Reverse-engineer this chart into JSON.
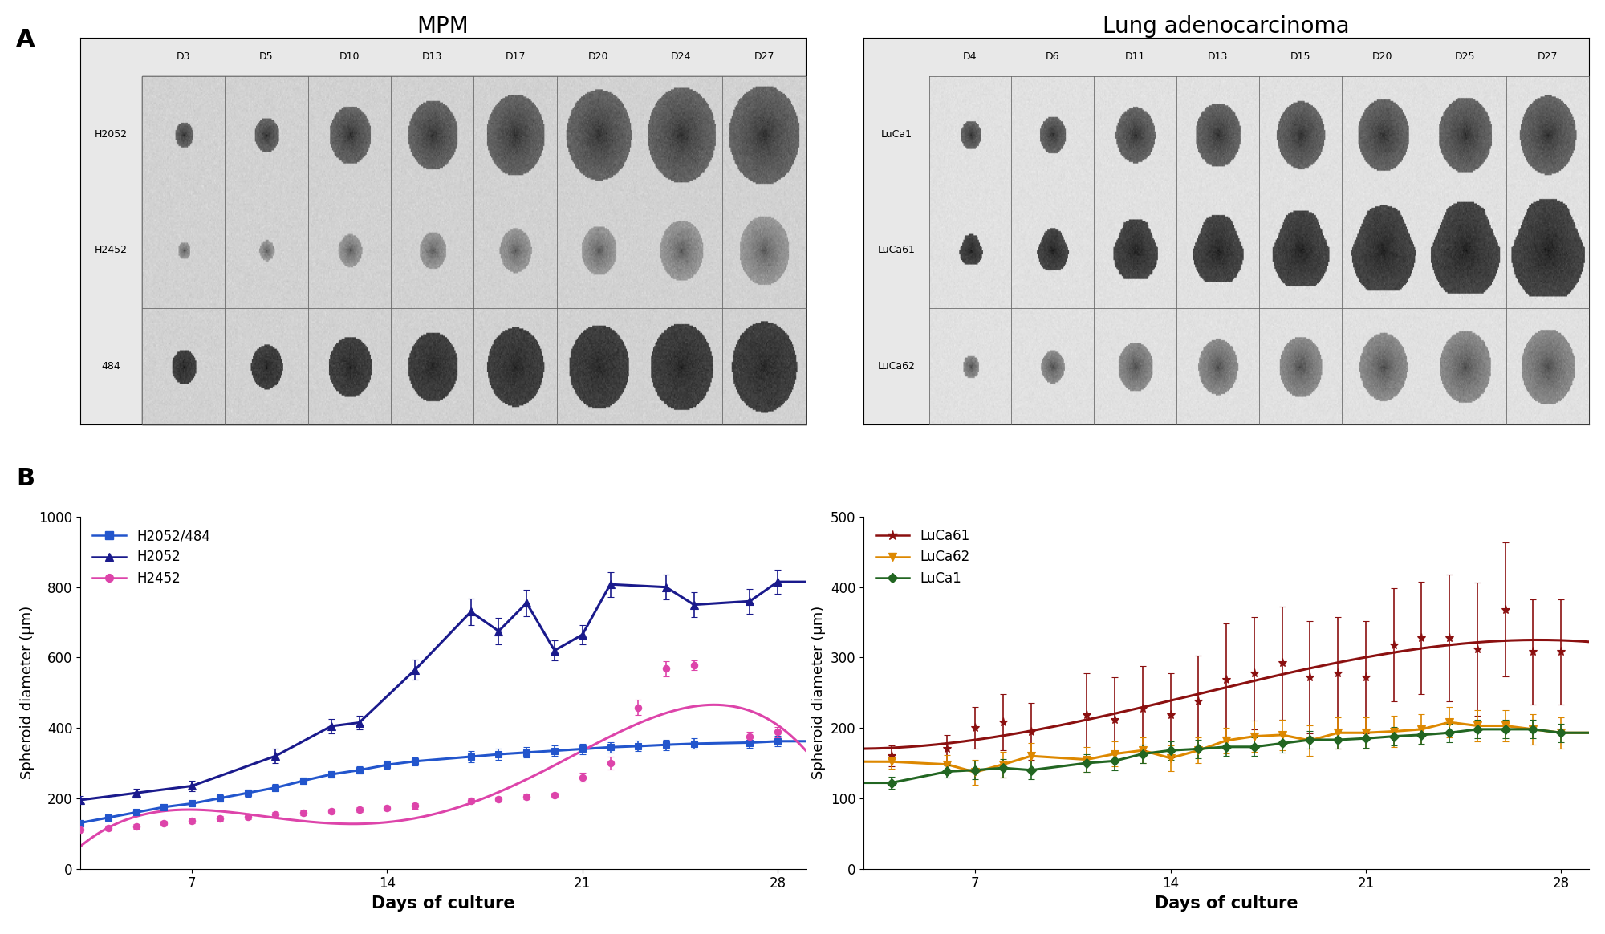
{
  "title_mpm": "MPM",
  "title_lung": "Lung adenocarcinoma",
  "ylabel": "Spheroid diameter (μm)",
  "xlabel": "Days of culture",
  "mpm_ylim": [
    0,
    1000
  ],
  "mpm_yticks": [
    0,
    200,
    400,
    600,
    800,
    1000
  ],
  "lung_ylim": [
    0,
    500
  ],
  "lung_yticks": [
    0,
    100,
    200,
    300,
    400,
    500
  ],
  "xticks": [
    7,
    14,
    21,
    28
  ],
  "H2052_484_color": "#2255cc",
  "H2052_color": "#1a1a8c",
  "H2452_color": "#dd44aa",
  "LuCa61_color": "#8b1010",
  "LuCa62_color": "#dd8800",
  "LuCa1_color": "#226622",
  "mpm_days": [
    "D3",
    "D5",
    "D10",
    "D13",
    "D17",
    "D20",
    "D24",
    "D27"
  ],
  "mpm_rows": [
    "H2052",
    "H2452",
    "484"
  ],
  "lung_days": [
    "D4",
    "D6",
    "D11",
    "D13",
    "D15",
    "D20",
    "D25",
    "D27"
  ],
  "lung_rows": [
    "LuCa1",
    "LuCa61",
    "LuCa62"
  ],
  "H2052_484_x": [
    3,
    4,
    5,
    6,
    7,
    8,
    9,
    10,
    11,
    12,
    13,
    14,
    15,
    17,
    18,
    19,
    20,
    21,
    22,
    23,
    24,
    25,
    27,
    28
  ],
  "H2052_484_y": [
    130,
    145,
    160,
    175,
    185,
    200,
    215,
    230,
    250,
    268,
    280,
    295,
    305,
    318,
    325,
    330,
    335,
    340,
    345,
    348,
    352,
    355,
    358,
    362
  ],
  "H2052_484_yerr": [
    8,
    8,
    8,
    8,
    8,
    10,
    10,
    10,
    10,
    10,
    10,
    12,
    12,
    15,
    15,
    15,
    15,
    15,
    15,
    15,
    15,
    15,
    15,
    15
  ],
  "H2052_x": [
    3,
    5,
    7,
    10,
    12,
    13,
    15,
    17,
    18,
    19,
    20,
    21,
    22,
    24,
    25,
    27,
    28
  ],
  "H2052_y": [
    195,
    215,
    235,
    320,
    405,
    415,
    565,
    730,
    675,
    755,
    620,
    665,
    808,
    800,
    750,
    760,
    815
  ],
  "H2052_yerr": [
    12,
    12,
    15,
    20,
    20,
    20,
    28,
    38,
    38,
    38,
    28,
    28,
    35,
    35,
    35,
    35,
    35
  ],
  "H2452_x": [
    3,
    4,
    5,
    6,
    7,
    8,
    9,
    10,
    11,
    12,
    13,
    14,
    15,
    17,
    18,
    19,
    20,
    21,
    22,
    23,
    24,
    25,
    27,
    28
  ],
  "H2452_y": [
    110,
    115,
    120,
    128,
    135,
    143,
    148,
    153,
    158,
    163,
    168,
    173,
    178,
    192,
    197,
    205,
    208,
    260,
    300,
    458,
    568,
    578,
    375,
    388
  ],
  "H2452_yerr": [
    7,
    7,
    7,
    7,
    7,
    7,
    7,
    7,
    7,
    7,
    7,
    7,
    7,
    7,
    7,
    7,
    7,
    13,
    18,
    22,
    22,
    14,
    14,
    14
  ],
  "LuCa61_x": [
    4,
    6,
    7,
    8,
    9,
    11,
    12,
    13,
    14,
    15,
    16,
    17,
    18,
    19,
    20,
    21,
    22,
    23,
    24,
    25,
    26,
    27,
    28
  ],
  "LuCa61_y": [
    160,
    170,
    200,
    208,
    195,
    218,
    212,
    228,
    218,
    238,
    268,
    278,
    292,
    272,
    278,
    272,
    318,
    328,
    328,
    312,
    368,
    308,
    308
  ],
  "LuCa61_yerr": [
    15,
    20,
    30,
    40,
    40,
    60,
    60,
    60,
    60,
    65,
    80,
    80,
    80,
    80,
    80,
    80,
    80,
    80,
    90,
    95,
    95,
    75,
    75
  ],
  "LuCa62_x": [
    4,
    6,
    7,
    8,
    9,
    11,
    12,
    13,
    14,
    15,
    16,
    17,
    18,
    19,
    20,
    21,
    22,
    23,
    24,
    25,
    26,
    27,
    28
  ],
  "LuCa62_y": [
    152,
    148,
    137,
    148,
    160,
    155,
    163,
    168,
    157,
    168,
    182,
    188,
    190,
    182,
    193,
    193,
    195,
    198,
    208,
    203,
    203,
    198,
    193
  ],
  "LuCa62_yerr": [
    10,
    13,
    18,
    18,
    18,
    18,
    18,
    18,
    18,
    18,
    18,
    22,
    22,
    22,
    22,
    22,
    22,
    22,
    22,
    22,
    22,
    22,
    22
  ],
  "LuCa1_x": [
    4,
    6,
    7,
    8,
    9,
    11,
    12,
    13,
    14,
    15,
    16,
    17,
    18,
    19,
    20,
    21,
    22,
    23,
    24,
    25,
    26,
    27,
    28
  ],
  "LuCa1_y": [
    122,
    138,
    140,
    143,
    140,
    150,
    153,
    163,
    168,
    170,
    173,
    173,
    178,
    183,
    183,
    185,
    188,
    190,
    193,
    198,
    198,
    198,
    193
  ],
  "LuCa1_yerr": [
    9,
    9,
    13,
    13,
    13,
    13,
    13,
    13,
    13,
    13,
    13,
    13,
    13,
    13,
    13,
    13,
    13,
    13,
    13,
    13,
    13,
    13,
    13
  ],
  "bg_color": "#ffffff",
  "font_size_title": 20,
  "font_size_label": 13,
  "font_size_tick": 12,
  "font_size_legend": 12
}
